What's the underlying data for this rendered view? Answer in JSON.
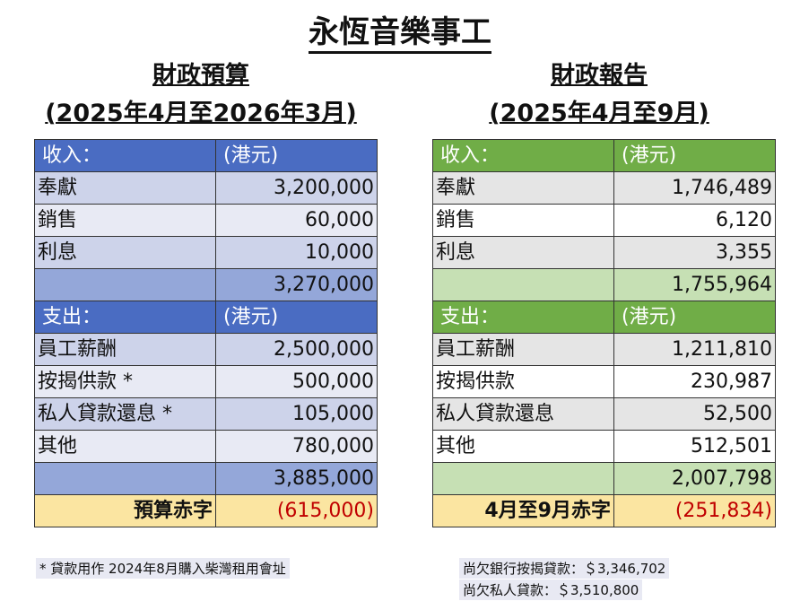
{
  "title": "永恆音樂事工",
  "budget": {
    "heading": "財政預算",
    "period": "(2025年4月至2026年3月)",
    "income_header": [
      "收入：",
      "(港元)"
    ],
    "income": [
      [
        "奉獻",
        "3,200,000"
      ],
      [
        "銷售",
        "60,000"
      ],
      [
        "利息",
        "10,000"
      ]
    ],
    "income_total": "3,270,000",
    "expense_header": [
      "支出：",
      "(港元)"
    ],
    "expense": [
      [
        "員工薪酬",
        "2,500,000"
      ],
      [
        "按揭供款 *",
        "500,000"
      ],
      [
        "私人貸款還息 *",
        "105,000"
      ],
      [
        "其他",
        "780,000"
      ]
    ],
    "expense_total": "3,885,000",
    "deficit": [
      "預算赤字",
      "(615,000)"
    ],
    "footnote": "* 貸款用作 2024年8月購入柴灣租用會址"
  },
  "report": {
    "heading": "財政報告",
    "period": "(2025年4月至9月)",
    "income_header": [
      "收入：",
      "(港元)"
    ],
    "income": [
      [
        "奉獻",
        "1,746,489"
      ],
      [
        "銷售",
        "6,120"
      ],
      [
        "利息",
        "3,355"
      ]
    ],
    "income_total": "1,755,964",
    "expense_header": [
      "支出：",
      "(港元)"
    ],
    "expense": [
      [
        "員工薪酬",
        "1,211,810"
      ],
      [
        "按揭供款",
        "230,987"
      ],
      [
        "私人貸款還息",
        "52,500"
      ],
      [
        "其他",
        "512,501"
      ]
    ],
    "expense_total": "2,007,798",
    "deficit": [
      "4月至9月赤字",
      "(251,834)"
    ],
    "notes": [
      "尚欠銀行按揭貸款：＄3,346,702",
      "尚欠私人貸款：＄3,510,800"
    ]
  },
  "colors": {
    "budget_header": "#4a6cc2",
    "report_header": "#70ad47",
    "deficit_bg": "#fbe5a1",
    "deficit_text": "#c00000"
  }
}
